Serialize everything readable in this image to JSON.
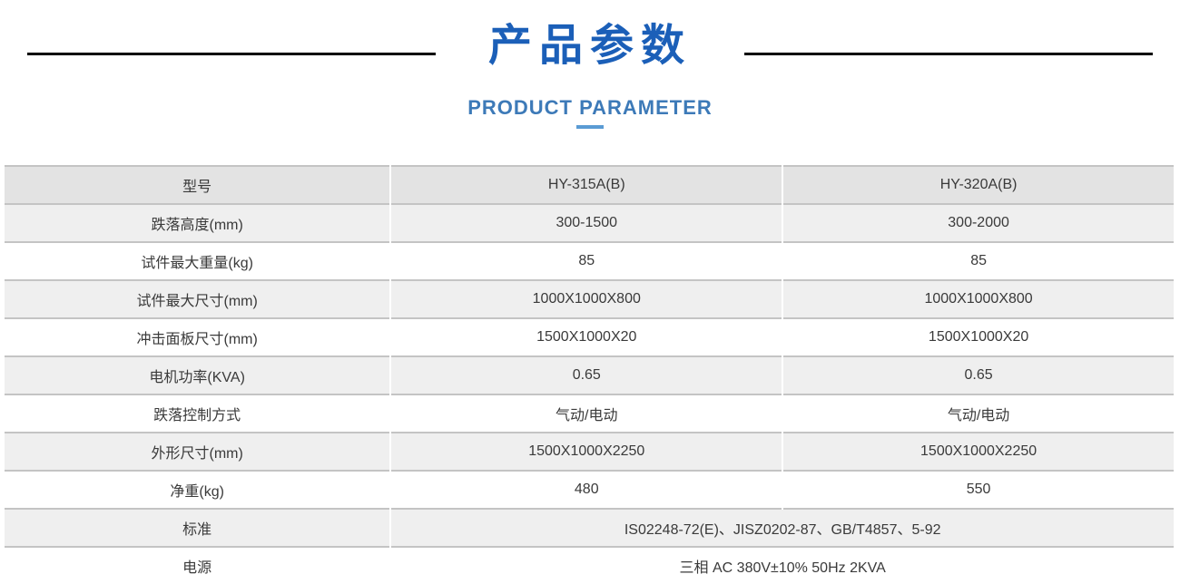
{
  "header": {
    "title_cn": "产品参数",
    "title_en": "PRODUCT PARAMETER",
    "title_color": "#1b5fb8",
    "subtitle_color": "#3d7ab8",
    "accent_bar_color": "#5a9bd4",
    "rule_color": "#000000"
  },
  "table": {
    "type": "table",
    "header_bg": "#e3e3e3",
    "row_alt_bg": "#efefef",
    "row_bg": "#ffffff",
    "border_color": "#c4c4c4",
    "text_color": "#3a3a3a",
    "font_size_pt": 12,
    "columns": [
      "型号",
      "HY-315A(B)",
      "HY-320A(B)"
    ],
    "rows": [
      {
        "label": "跌落高度(mm)",
        "a": "300-1500",
        "b": "300-2000"
      },
      {
        "label": "试件最大重量(kg)",
        "a": "85",
        "b": "85"
      },
      {
        "label": "试件最大尺寸(mm)",
        "a": "1000X1000X800",
        "b": "1000X1000X800"
      },
      {
        "label": "冲击面板尺寸(mm)",
        "a": "1500X1000X20",
        "b": "1500X1000X20"
      },
      {
        "label": "电机功率(KVA)",
        "a": "0.65",
        "b": "0.65"
      },
      {
        "label": "跌落控制方式",
        "a": "气动/电动",
        "b": "气动/电动"
      },
      {
        "label": "外形尺寸(mm)",
        "a": "1500X1000X2250",
        "b": "1500X1000X2250"
      },
      {
        "label": "净重(kg)",
        "a": "480",
        "b": "550"
      }
    ],
    "merged_rows": [
      {
        "label": "标准",
        "value": "IS02248-72(E)、JISZ0202-87、GB/T4857、5-92"
      },
      {
        "label": "电源",
        "value": "三相 AC 380V±10% 50Hz 2KVA"
      }
    ]
  }
}
